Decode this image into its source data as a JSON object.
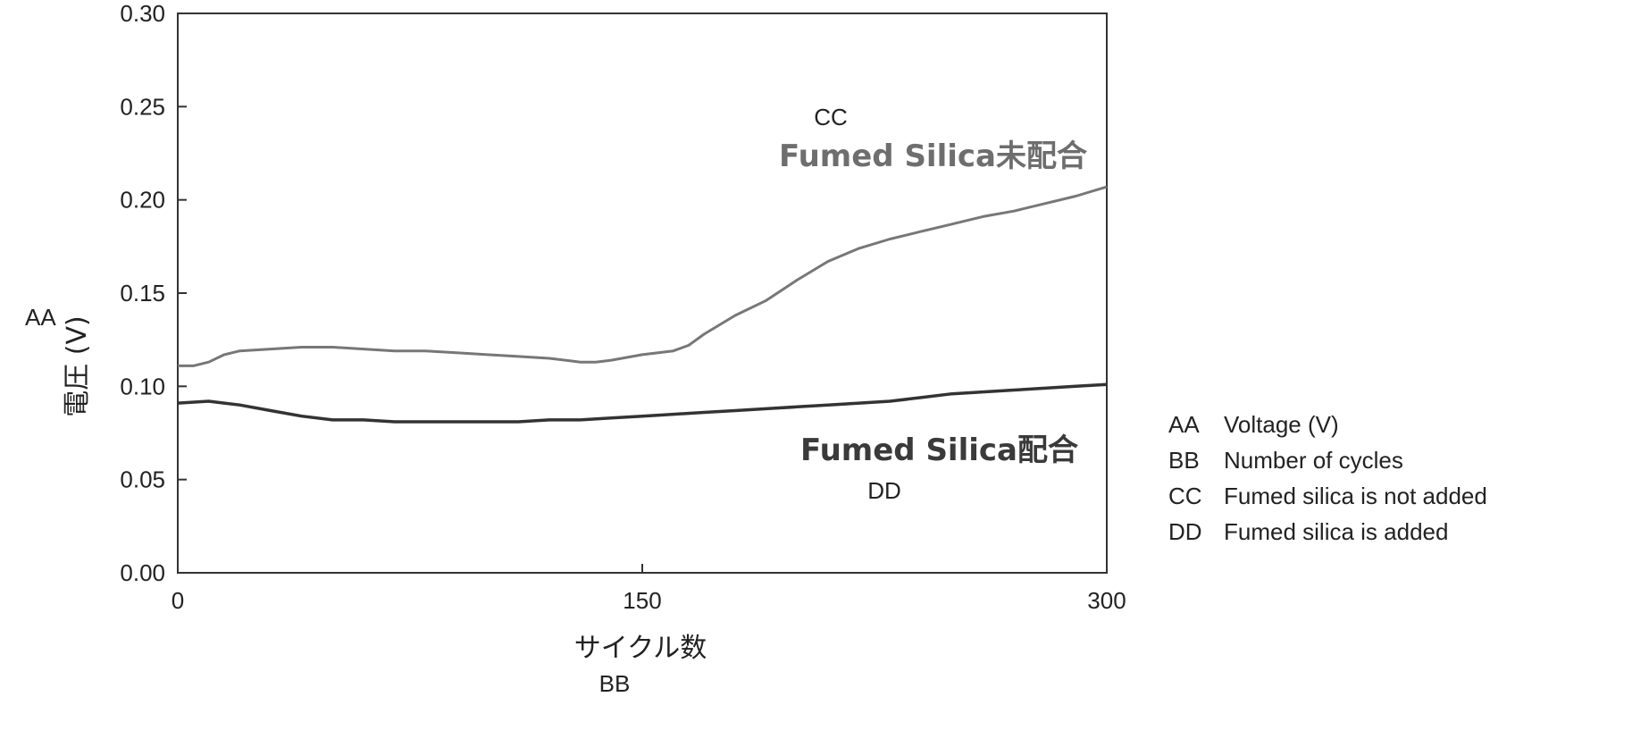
{
  "chart_data": {
    "type": "line",
    "xlabel": "サイクル数",
    "xlabel_code": "BB",
    "ylabel": "電圧 (V)",
    "ylabel_code": "AA",
    "xlim": [
      0,
      300
    ],
    "ylim": [
      0.0,
      0.3
    ],
    "x_ticks": [
      "0",
      "150",
      "300"
    ],
    "y_ticks": [
      "0.00",
      "0.05",
      "0.10",
      "0.15",
      "0.20",
      "0.25",
      "0.30"
    ],
    "grid": false,
    "series": [
      {
        "name": "Fumed Silica未配合",
        "code": "CC",
        "color": "#777777",
        "x": [
          0,
          5,
          10,
          15,
          20,
          30,
          40,
          50,
          60,
          70,
          80,
          90,
          100,
          110,
          120,
          130,
          135,
          140,
          150,
          160,
          165,
          170,
          180,
          190,
          200,
          210,
          220,
          230,
          240,
          250,
          260,
          270,
          280,
          290,
          300
        ],
        "y": [
          0.111,
          0.111,
          0.113,
          0.117,
          0.119,
          0.12,
          0.121,
          0.121,
          0.12,
          0.119,
          0.119,
          0.118,
          0.117,
          0.116,
          0.115,
          0.113,
          0.113,
          0.114,
          0.117,
          0.119,
          0.122,
          0.128,
          0.138,
          0.146,
          0.157,
          0.167,
          0.174,
          0.179,
          0.183,
          0.187,
          0.191,
          0.194,
          0.198,
          0.202,
          0.207
        ]
      },
      {
        "name": "Fumed Silica配合",
        "code": "DD",
        "color": "#333333",
        "x": [
          0,
          10,
          20,
          30,
          40,
          50,
          60,
          70,
          80,
          90,
          100,
          110,
          120,
          130,
          140,
          150,
          160,
          170,
          180,
          190,
          200,
          210,
          220,
          230,
          240,
          250,
          260,
          270,
          280,
          290,
          300
        ],
        "y": [
          0.091,
          0.092,
          0.09,
          0.087,
          0.084,
          0.082,
          0.082,
          0.081,
          0.081,
          0.081,
          0.081,
          0.081,
          0.082,
          0.082,
          0.083,
          0.084,
          0.085,
          0.086,
          0.087,
          0.088,
          0.089,
          0.09,
          0.091,
          0.092,
          0.094,
          0.096,
          0.097,
          0.098,
          0.099,
          0.1,
          0.101
        ]
      }
    ]
  },
  "key": [
    {
      "code": "AA",
      "text": "Voltage (V)"
    },
    {
      "code": "BB",
      "text": "Number of cycles"
    },
    {
      "code": "CC",
      "text": "Fumed silica is not added"
    },
    {
      "code": "DD",
      "text": "Fumed silica is added"
    }
  ]
}
